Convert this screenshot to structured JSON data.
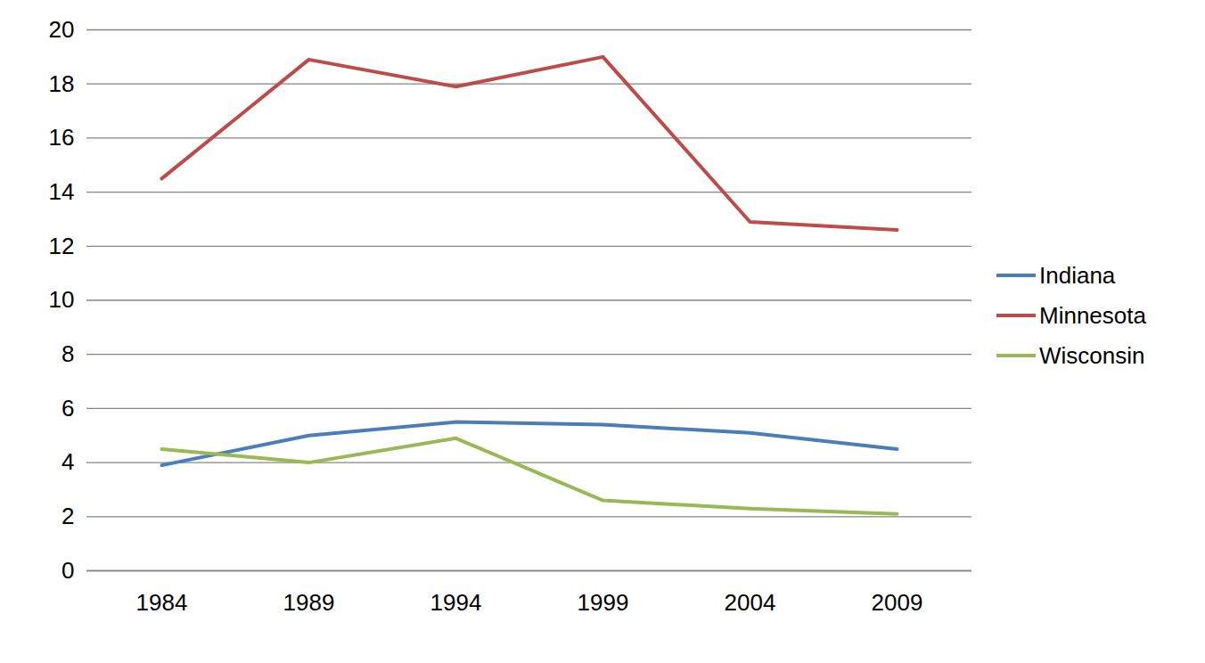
{
  "chart_data": {
    "type": "line",
    "categories": [
      "1984",
      "1989",
      "1994",
      "1999",
      "2004",
      "2009"
    ],
    "series": [
      {
        "name": "Indiana",
        "color": "#4a7ebb",
        "values": [
          3.9,
          5.0,
          5.5,
          5.4,
          5.1,
          4.5
        ]
      },
      {
        "name": "Minnesota",
        "color": "#be4b48",
        "values": [
          14.5,
          18.9,
          17.9,
          19.0,
          12.9,
          12.6
        ]
      },
      {
        "name": "Wisconsin",
        "color": "#98b954",
        "values": [
          4.5,
          4.0,
          4.9,
          2.6,
          2.3,
          2.1
        ]
      }
    ],
    "ylim": [
      0,
      20
    ],
    "yticks": [
      0,
      2,
      4,
      6,
      8,
      10,
      12,
      14,
      16,
      18,
      20
    ],
    "grid": true,
    "legend": "right"
  }
}
